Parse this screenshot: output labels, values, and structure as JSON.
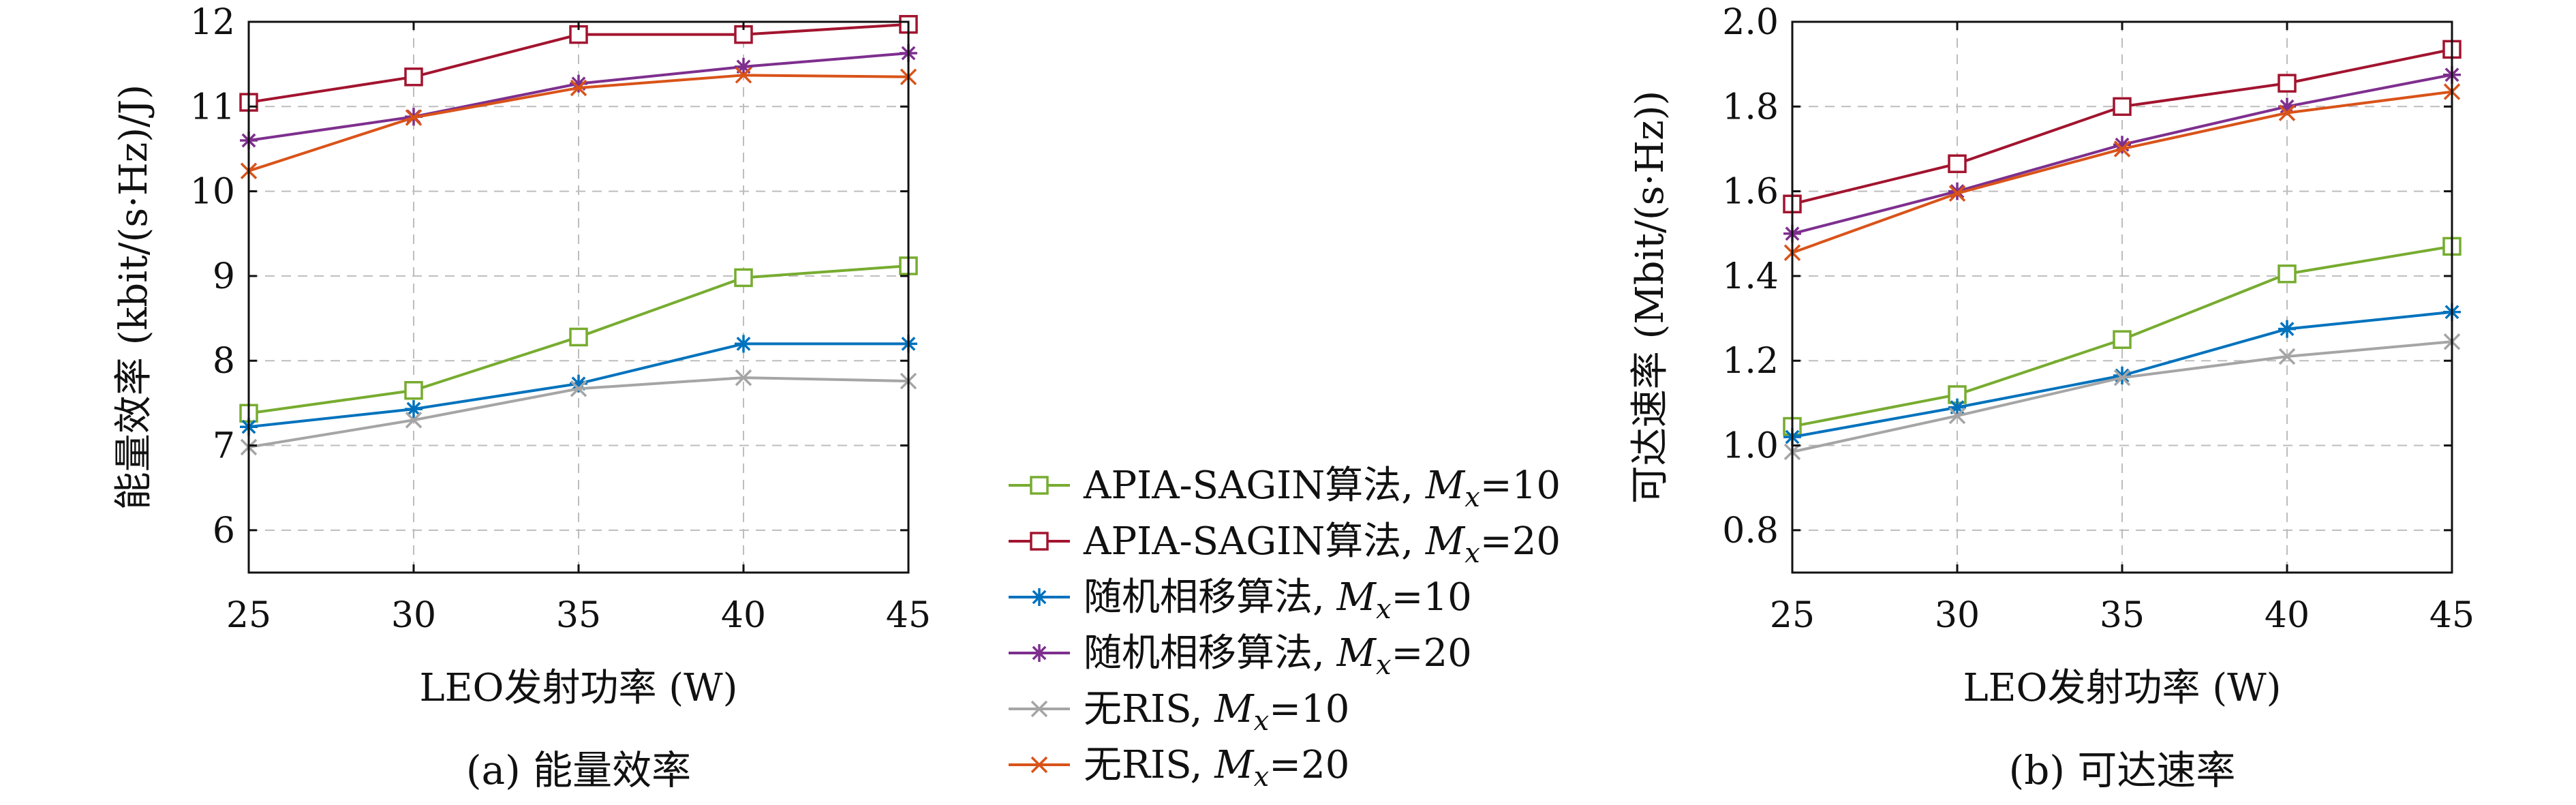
{
  "chart_data": [
    {
      "type": "line",
      "caption": "(a) 能量效率",
      "xlabel": "LEO发射功率 (W)",
      "ylabel": "能量效率 (kbit/(s·Hz)/J)",
      "x": [
        25,
        30,
        35,
        40,
        45
      ],
      "xlim": [
        25,
        45
      ],
      "ylim": [
        5.5,
        12
      ],
      "xticks": [
        "25",
        "30",
        "35",
        "40",
        "45"
      ],
      "yticks": [
        "6",
        "7",
        "8",
        "9",
        "10",
        "11",
        "12"
      ],
      "grid": true,
      "series": [
        {
          "name": "APIA-SAGIN算法, Mx=10",
          "values": [
            7.38,
            7.65,
            8.28,
            8.98,
            9.12
          ]
        },
        {
          "name": "APIA-SAGIN算法, Mx=20",
          "values": [
            11.05,
            11.35,
            11.85,
            11.85,
            11.97
          ]
        },
        {
          "name": "随机相移算法, Mx=10",
          "values": [
            7.22,
            7.43,
            7.73,
            8.2,
            8.2
          ]
        },
        {
          "name": "随机相移算法, Mx=20",
          "values": [
            10.6,
            10.88,
            11.27,
            11.47,
            11.63
          ]
        },
        {
          "name": "无RIS, Mx=10",
          "values": [
            6.98,
            7.3,
            7.67,
            7.8,
            7.76
          ]
        },
        {
          "name": "无RIS, Mx=20",
          "values": [
            10.24,
            10.87,
            11.22,
            11.37,
            11.35
          ]
        }
      ]
    },
    {
      "type": "line",
      "caption": "(b) 可达速率",
      "xlabel": "LEO发射功率 (W)",
      "ylabel": "可达速率 (Mbit/(s·Hz))",
      "x": [
        25,
        30,
        35,
        40,
        45
      ],
      "xlim": [
        25,
        45
      ],
      "ylim": [
        0.7,
        2.0
      ],
      "xticks": [
        "25",
        "30",
        "35",
        "40",
        "45"
      ],
      "yticks": [
        "0.8",
        "1.0",
        "1.2",
        "1.4",
        "1.6",
        "1.8",
        "2.0"
      ],
      "grid": true,
      "series": [
        {
          "name": "APIA-SAGIN算法, Mx=10",
          "values": [
            1.045,
            1.12,
            1.25,
            1.405,
            1.47
          ]
        },
        {
          "name": "APIA-SAGIN算法, Mx=20",
          "values": [
            1.57,
            1.665,
            1.8,
            1.855,
            1.935
          ]
        },
        {
          "name": "随机相移算法, Mx=10",
          "values": [
            1.02,
            1.09,
            1.165,
            1.275,
            1.315
          ]
        },
        {
          "name": "随机相移算法, Mx=20",
          "values": [
            1.5,
            1.6,
            1.71,
            1.8,
            1.875
          ]
        },
        {
          "name": "无RIS, Mx=10",
          "values": [
            0.985,
            1.07,
            1.16,
            1.21,
            1.245
          ]
        },
        {
          "name": "无RIS, Mx=20",
          "values": [
            1.455,
            1.595,
            1.7,
            1.785,
            1.835
          ]
        }
      ]
    }
  ],
  "legend": {
    "entries": [
      {
        "label": "APIA-SAGIN算法, ",
        "sym": "M",
        "sub": "x",
        "suffix": "=10",
        "color": "#77ac30",
        "marker": "square"
      },
      {
        "label": "APIA-SAGIN算法, ",
        "sym": "M",
        "sub": "x",
        "suffix": "=20",
        "color": "#a2142f",
        "marker": "square"
      },
      {
        "label": "随机相移算法, ",
        "sym": "M",
        "sub": "x",
        "suffix": "=10",
        "color": "#0072bd",
        "marker": "asterisk"
      },
      {
        "label": "随机相移算法, ",
        "sym": "M",
        "sub": "x",
        "suffix": "=20",
        "color": "#7e2f8e",
        "marker": "asterisk"
      },
      {
        "label": "无RIS, ",
        "sym": "M",
        "sub": "x",
        "suffix": "=10",
        "color": "#a5a5a5",
        "marker": "x"
      },
      {
        "label": "无RIS, ",
        "sym": "M",
        "sub": "x",
        "suffix": "=20",
        "color": "#d95319",
        "marker": "x"
      }
    ]
  }
}
